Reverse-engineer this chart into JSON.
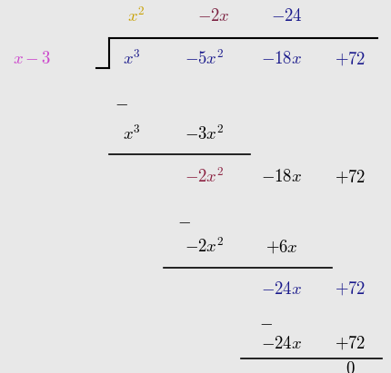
{
  "bg_color": "#e8e8e8",
  "colors": {
    "quotient_x2": "#c8a000",
    "quotient_2x": "#7b2040",
    "quotient_24": "#1a1a8c",
    "divisor": "#cc44cc",
    "dividend": "#1a1a8c",
    "black": "#000000",
    "red_term": "#8b2040",
    "blue_term": "#1a1a8c"
  }
}
